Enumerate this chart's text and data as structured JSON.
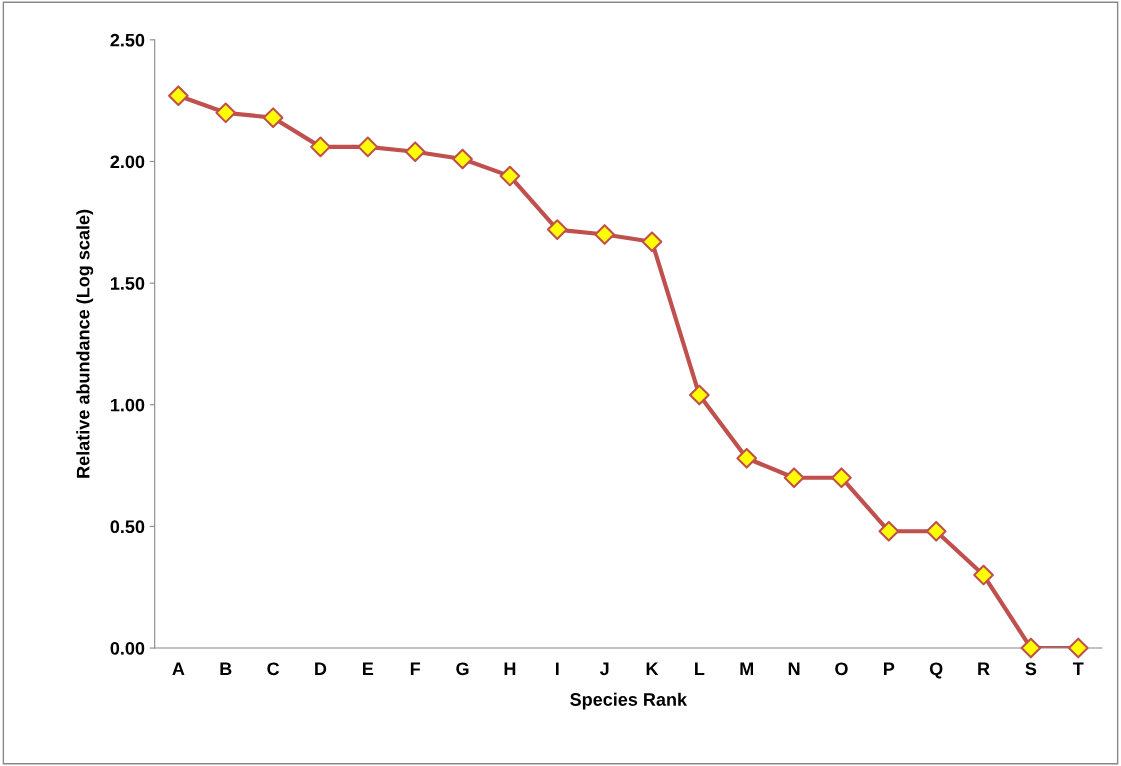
{
  "chart_data": {
    "type": "line",
    "xlabel": "Species Rank",
    "ylabel": "Relative abundance (Log scale)",
    "categories": [
      "A",
      "B",
      "C",
      "D",
      "E",
      "F",
      "G",
      "H",
      "I",
      "J",
      "K",
      "L",
      "M",
      "N",
      "O",
      "P",
      "Q",
      "R",
      "S",
      "T"
    ],
    "series": [
      {
        "color": "#c0504d",
        "colors": [
          "#ffff00",
          "#ffff00",
          "#ffff00",
          "#ffff00",
          "#ffff00",
          "#ffff00",
          "#ffff00",
          "#ffff00",
          "#ffff00",
          "#ffff00",
          "#ffff00",
          "#ffff00",
          "#ffff00",
          "#ffff00",
          "#ffff00",
          "#ffff00",
          "#ffff00",
          "#ffff00",
          "#ffff00",
          "#ffff00"
        ],
        "values": [
          2.27,
          2.2,
          2.18,
          2.06,
          2.06,
          2.04,
          2.01,
          1.94,
          1.72,
          1.7,
          1.67,
          1.04,
          0.78,
          0.7,
          0.7,
          0.48,
          0.48,
          0.3,
          0.0,
          0.0
        ]
      }
    ],
    "ylim": [
      0,
      2.5
    ],
    "yticks": [
      {
        "value": 0,
        "label": "0.00"
      },
      {
        "value": 0.5,
        "label": "0.50"
      },
      {
        "value": 1.0,
        "label": "1.00"
      },
      {
        "value": 1.5,
        "label": "1.50"
      },
      {
        "value": 2.0,
        "label": "2.00"
      },
      {
        "value": 2.5,
        "label": "2.50"
      }
    ],
    "grid": false,
    "legend": false,
    "marker": "diamond",
    "line_style": "solid"
  }
}
